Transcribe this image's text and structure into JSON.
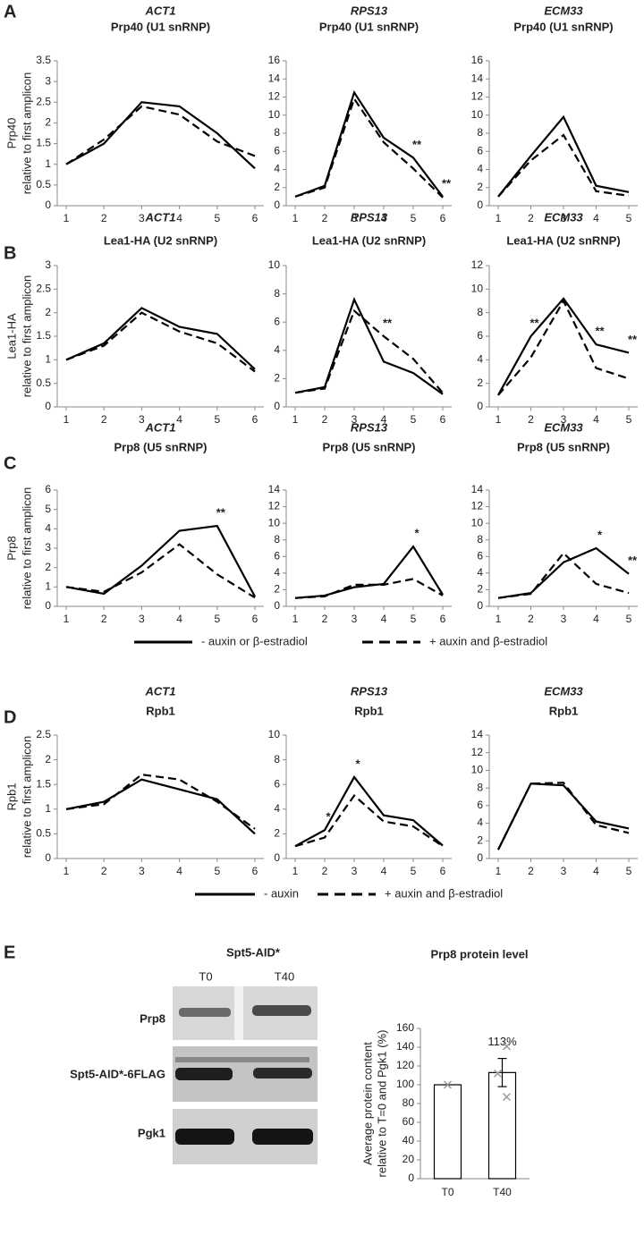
{
  "chart_data": [
    {
      "type": "line",
      "panel": "A",
      "title": "ACT1",
      "subtitle": "Prp40 (U1 snRNP)",
      "ylabel": [
        "Prp40",
        "relative to first amplicon"
      ],
      "x": [
        1,
        2,
        3,
        4,
        5,
        6
      ],
      "series": [
        {
          "name": "- auxin or β-estradiol",
          "color": "#000000",
          "linestyle": "solid",
          "values": [
            1,
            1.5,
            2.5,
            2.4,
            1.75,
            0.9
          ]
        },
        {
          "name": "+ auxin and β-estradiol",
          "color": "#000000",
          "linestyle": "dashed",
          "values": [
            1,
            1.6,
            2.4,
            2.2,
            1.55,
            1.2
          ]
        }
      ],
      "ylim": [
        0,
        3.5
      ],
      "yticks": [
        0,
        0.5,
        1,
        1.5,
        2,
        2.5,
        3,
        3.5
      ],
      "annotations": []
    },
    {
      "type": "line",
      "title": "RPS13",
      "subtitle": "Prp40 (U1 snRNP)",
      "x": [
        1,
        2,
        3,
        4,
        5,
        6
      ],
      "series": [
        {
          "name": "- auxin or β-estradiol",
          "color": "#000000",
          "linestyle": "solid",
          "values": [
            1,
            2.2,
            12.5,
            7.5,
            5.3,
            1.0
          ]
        },
        {
          "name": "+ auxin and β-estradiol",
          "color": "#000000",
          "linestyle": "dashed",
          "values": [
            1,
            2,
            11.8,
            7.0,
            4.1,
            0.9
          ]
        }
      ],
      "ylim": [
        0,
        16
      ],
      "yticks": [
        0,
        2,
        4,
        6,
        8,
        10,
        12,
        14,
        16
      ],
      "annotations": [
        {
          "x": 5,
          "text": "**"
        },
        {
          "x": 6,
          "text": "**"
        }
      ]
    },
    {
      "type": "line",
      "title": "ECM33",
      "subtitle": "Prp40 (U1 snRNP)",
      "x": [
        1,
        2,
        3,
        4,
        5
      ],
      "series": [
        {
          "name": "- auxin or β-estradiol",
          "color": "#000000",
          "linestyle": "solid",
          "values": [
            1,
            5.5,
            9.8,
            2.2,
            1.5
          ]
        },
        {
          "name": "+ auxin and β-estradiol",
          "color": "#000000",
          "linestyle": "dashed",
          "values": [
            1,
            5,
            7.8,
            1.6,
            1.1
          ]
        }
      ],
      "ylim": [
        0,
        16
      ],
      "yticks": [
        0,
        2,
        4,
        6,
        8,
        10,
        12,
        14,
        16
      ],
      "annotations": []
    },
    {
      "type": "line",
      "panel": "B",
      "title": "ACT1",
      "subtitle": "Lea1-HA (U2 snRNP)",
      "ylabel": [
        "Lea1-HA",
        "relative to first amplicon"
      ],
      "x": [
        1,
        2,
        3,
        4,
        5,
        6
      ],
      "series": [
        {
          "name": "- auxin or β-estradiol",
          "color": "#000000",
          "linestyle": "solid",
          "values": [
            1,
            1.35,
            2.1,
            1.7,
            1.55,
            0.8
          ]
        },
        {
          "name": "+ auxin and β-estradiol",
          "color": "#000000",
          "linestyle": "dashed",
          "values": [
            1,
            1.3,
            2.0,
            1.6,
            1.35,
            0.75
          ]
        }
      ],
      "ylim": [
        0,
        3
      ],
      "yticks": [
        0,
        0.5,
        1,
        1.5,
        2,
        2.5,
        3
      ],
      "annotations": []
    },
    {
      "type": "line",
      "title": "RPS13",
      "subtitle": "Lea1-HA (U2 snRNP)",
      "x": [
        1,
        2,
        3,
        4,
        5,
        6
      ],
      "series": [
        {
          "name": "- auxin or β-estradiol",
          "color": "#000000",
          "linestyle": "solid",
          "values": [
            1,
            1.4,
            7.6,
            3.2,
            2.4,
            0.9
          ]
        },
        {
          "name": "+ auxin and β-estradiol",
          "color": "#000000",
          "linestyle": "dashed",
          "values": [
            1,
            1.3,
            6.8,
            5.0,
            3.4,
            1.0
          ]
        }
      ],
      "ylim": [
        0,
        10
      ],
      "yticks": [
        0,
        2,
        4,
        6,
        8,
        10
      ],
      "annotations": [
        {
          "x": 4,
          "text": "**"
        }
      ]
    },
    {
      "type": "line",
      "title": "ECM33",
      "subtitle": "Lea1-HA (U2 snRNP)",
      "x": [
        1,
        2,
        3,
        4,
        5
      ],
      "series": [
        {
          "name": "- auxin or β-estradiol",
          "color": "#000000",
          "linestyle": "solid",
          "values": [
            1,
            6,
            9.2,
            5.3,
            4.6
          ]
        },
        {
          "name": "+ auxin and β-estradiol",
          "color": "#000000",
          "linestyle": "dashed",
          "values": [
            1,
            4.2,
            9,
            3.3,
            2.4
          ]
        }
      ],
      "ylim": [
        0,
        12
      ],
      "yticks": [
        0,
        2,
        4,
        6,
        8,
        10,
        12
      ],
      "annotations": [
        {
          "x": 2,
          "text": "**"
        },
        {
          "x": 4,
          "text": "**"
        },
        {
          "x": 5,
          "text": "**"
        }
      ]
    },
    {
      "type": "line",
      "panel": "C",
      "title": "ACT1",
      "subtitle": "Prp8 (U5 snRNP)",
      "ylabel": [
        "Prp8",
        "relative to first amplicon"
      ],
      "x": [
        1,
        2,
        3,
        4,
        5,
        6
      ],
      "legend": "bottom",
      "series": [
        {
          "name": "- auxin or β-estradiol",
          "color": "#000000",
          "linestyle": "solid",
          "values": [
            1,
            0.65,
            2.1,
            3.9,
            4.15,
            0.5
          ]
        },
        {
          "name": "+ auxin and β-estradiol",
          "color": "#000000",
          "linestyle": "dashed",
          "values": [
            1,
            0.75,
            1.75,
            3.2,
            1.65,
            0.45
          ]
        }
      ],
      "ylim": [
        0,
        6
      ],
      "yticks": [
        0,
        1,
        2,
        3,
        4,
        5,
        6
      ],
      "annotations": [
        {
          "x": 5,
          "text": "**"
        }
      ]
    },
    {
      "type": "line",
      "title": "RPS13",
      "subtitle": "Prp8 (U5 snRNP)",
      "x": [
        1,
        2,
        3,
        4,
        5,
        6
      ],
      "series": [
        {
          "name": "- auxin or β-estradiol",
          "color": "#000000",
          "linestyle": "solid",
          "values": [
            1,
            1.3,
            2.3,
            2.7,
            7.2,
            1.4
          ]
        },
        {
          "name": "+ auxin and β-estradiol",
          "color": "#000000",
          "linestyle": "dashed",
          "values": [
            1,
            1.2,
            2.6,
            2.6,
            3.3,
            1.3
          ]
        }
      ],
      "ylim": [
        0,
        14
      ],
      "yticks": [
        0,
        2,
        4,
        6,
        8,
        10,
        12,
        14
      ],
      "annotations": [
        {
          "x": 5,
          "text": "*"
        }
      ]
    },
    {
      "type": "line",
      "title": "ECM33",
      "subtitle": "Prp8 (U5 snRNP)",
      "x": [
        1,
        2,
        3,
        4,
        5
      ],
      "series": [
        {
          "name": "- auxin or β-estradiol",
          "color": "#000000",
          "linestyle": "solid",
          "values": [
            1,
            1.6,
            5.3,
            7,
            3.9
          ]
        },
        {
          "name": "+ auxin and β-estradiol",
          "color": "#000000",
          "linestyle": "dashed",
          "values": [
            1,
            1.5,
            6.4,
            2.7,
            1.6
          ]
        }
      ],
      "ylim": [
        0,
        14
      ],
      "yticks": [
        0,
        2,
        4,
        6,
        8,
        10,
        12,
        14
      ],
      "annotations": [
        {
          "x": 4,
          "text": "*"
        },
        {
          "x": 5,
          "text": "**"
        }
      ]
    },
    {
      "type": "line",
      "panel": "D",
      "title": "ACT1",
      "subtitle": "Rpb1",
      "ylabel": [
        "Rpb1",
        "relative to first amplicon"
      ],
      "x": [
        1,
        2,
        3,
        4,
        5,
        6
      ],
      "legend": "bottom",
      "series": [
        {
          "name": "- auxin",
          "color": "#000000",
          "linestyle": "solid",
          "values": [
            1,
            1.15,
            1.6,
            1.4,
            1.2,
            0.5
          ]
        },
        {
          "name": "+ auxin and β-estradiol",
          "color": "#000000",
          "linestyle": "dashed",
          "values": [
            1,
            1.1,
            1.7,
            1.6,
            1.15,
            0.6
          ]
        }
      ],
      "ylim": [
        0,
        2.5
      ],
      "yticks": [
        0,
        0.5,
        1,
        1.5,
        2,
        2.5
      ],
      "annotations": []
    },
    {
      "type": "line",
      "title": "RPS13",
      "subtitle": "Rpb1",
      "x": [
        1,
        2,
        3,
        4,
        5,
        6
      ],
      "series": [
        {
          "name": "- auxin",
          "color": "#000000",
          "linestyle": "solid",
          "values": [
            1,
            2.3,
            6.6,
            3.5,
            3.1,
            1.05
          ]
        },
        {
          "name": "+ auxin and β-estradiol",
          "color": "#000000",
          "linestyle": "dashed",
          "values": [
            1,
            1.7,
            5.1,
            3.0,
            2.6,
            1.0
          ]
        }
      ],
      "ylim": [
        0,
        10
      ],
      "yticks": [
        0,
        2,
        4,
        6,
        8,
        10
      ],
      "annotations": [
        {
          "x": 2,
          "text": "*"
        },
        {
          "x": 3,
          "text": "*"
        }
      ]
    },
    {
      "type": "line",
      "title": "ECM33",
      "subtitle": "Rpb1",
      "x": [
        1,
        2,
        3,
        4,
        5
      ],
      "series": [
        {
          "name": "- auxin",
          "color": "#000000",
          "linestyle": "solid",
          "values": [
            1,
            8.5,
            8.3,
            4.2,
            3.4
          ]
        },
        {
          "name": "+ auxin and β-estradiol",
          "color": "#000000",
          "linestyle": "dashed",
          "values": [
            1,
            8.5,
            8.6,
            3.8,
            2.9
          ]
        }
      ],
      "ylim": [
        0,
        14
      ],
      "yticks": [
        0,
        2,
        4,
        6,
        8,
        10,
        12,
        14
      ],
      "annotations": []
    },
    {
      "type": "bar",
      "title": "Prp8 protein level",
      "ylabel": [
        "Average protein content",
        "relative to T=0 and Pgk1 (%)"
      ],
      "categories": [
        "T0",
        "T40"
      ],
      "values": [
        100,
        113
      ],
      "errors": [
        0,
        15
      ],
      "value_labels": [
        null,
        "113%"
      ],
      "replicates": [
        [
          100
        ],
        [
          141,
          112,
          87
        ]
      ],
      "color": "#ffffff",
      "edgecolor": "#000000",
      "ylim": [
        0,
        160
      ],
      "yticks": [
        0,
        20,
        40,
        60,
        80,
        100,
        120,
        140,
        160
      ]
    }
  ],
  "blot": {
    "panel": "E",
    "title": "Spt5-AID*",
    "lanes": [
      "T0",
      "T40"
    ],
    "rows": [
      "Prp8",
      "Spt5-AID*-6FLAG",
      "Pgk1"
    ]
  }
}
